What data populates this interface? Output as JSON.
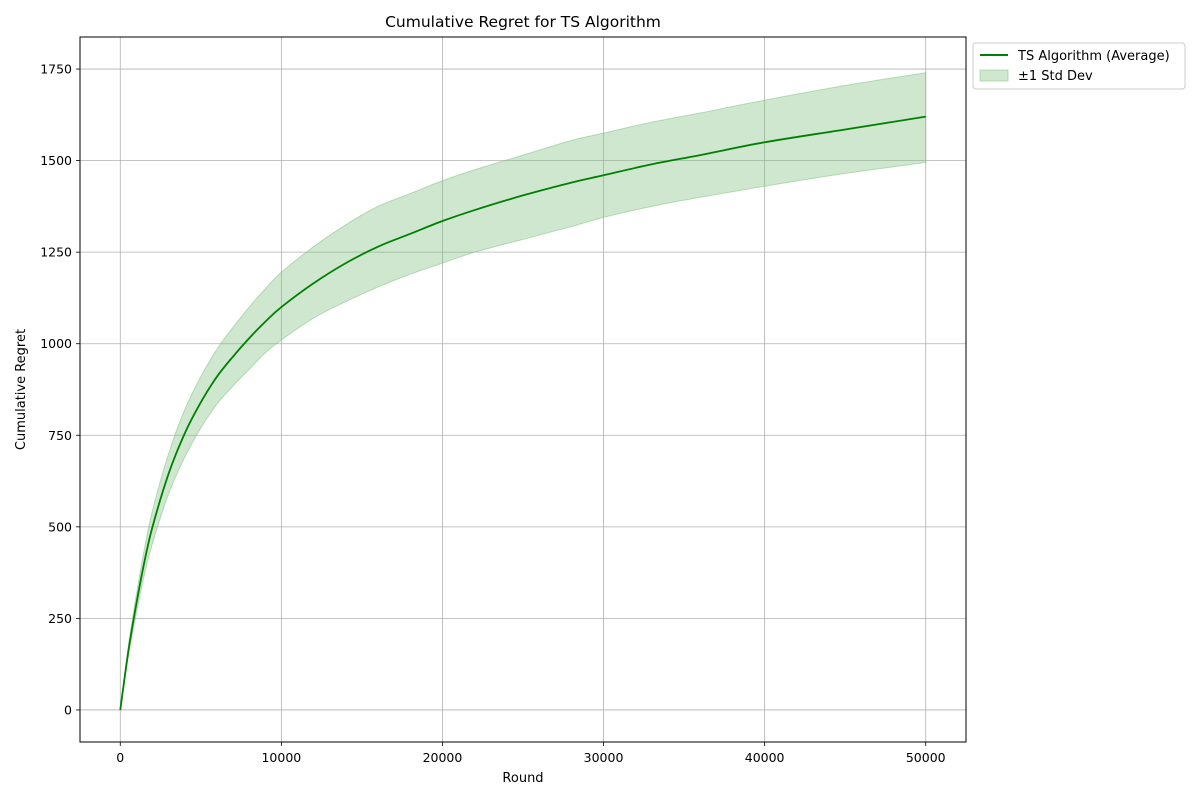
{
  "chart_data": {
    "type": "line",
    "title": "Cumulative Regret for TS Algorithm",
    "xlabel": "Round",
    "ylabel": "Cumulative Regret",
    "xlim": [
      -2500,
      52500
    ],
    "ylim": [
      -87.5,
      1837.5
    ],
    "xticks": [
      0,
      10000,
      20000,
      30000,
      40000,
      50000
    ],
    "yticks": [
      0,
      250,
      500,
      750,
      1000,
      1250,
      1500,
      1750
    ],
    "grid": true,
    "legend_position": "outside-top-right",
    "colors": {
      "line": "#008000",
      "band": "#7fbf7f"
    },
    "series": [
      {
        "name": "TS Algorithm (Average)",
        "x": [
          0,
          500,
          1000,
          1500,
          2000,
          3000,
          4000,
          5000,
          6000,
          7000,
          8000,
          9000,
          10000,
          12000,
          14000,
          16000,
          18000,
          20000,
          22000,
          25000,
          28000,
          30000,
          33000,
          36000,
          40000,
          45000,
          50000
        ],
        "y": [
          0,
          160,
          290,
          405,
          500,
          645,
          755,
          840,
          910,
          965,
          1015,
          1060,
          1100,
          1165,
          1220,
          1265,
          1300,
          1335,
          1365,
          1405,
          1440,
          1460,
          1490,
          1515,
          1550,
          1585,
          1620
        ]
      }
    ],
    "band": {
      "name": "±1 Std Dev",
      "x": [
        0,
        500,
        1000,
        1500,
        2000,
        3000,
        4000,
        5000,
        6000,
        7000,
        8000,
        9000,
        10000,
        12000,
        14000,
        16000,
        18000,
        20000,
        22000,
        25000,
        28000,
        30000,
        33000,
        36000,
        40000,
        45000,
        50000
      ],
      "lower": [
        0,
        145,
        265,
        370,
        455,
        590,
        690,
        770,
        835,
        885,
        930,
        975,
        1010,
        1070,
        1115,
        1155,
        1190,
        1220,
        1250,
        1285,
        1320,
        1345,
        1375,
        1400,
        1430,
        1465,
        1495
      ],
      "upper": [
        0,
        175,
        315,
        440,
        545,
        700,
        820,
        910,
        985,
        1045,
        1100,
        1150,
        1195,
        1265,
        1325,
        1375,
        1410,
        1445,
        1475,
        1515,
        1555,
        1575,
        1605,
        1630,
        1665,
        1705,
        1740
      ]
    }
  }
}
